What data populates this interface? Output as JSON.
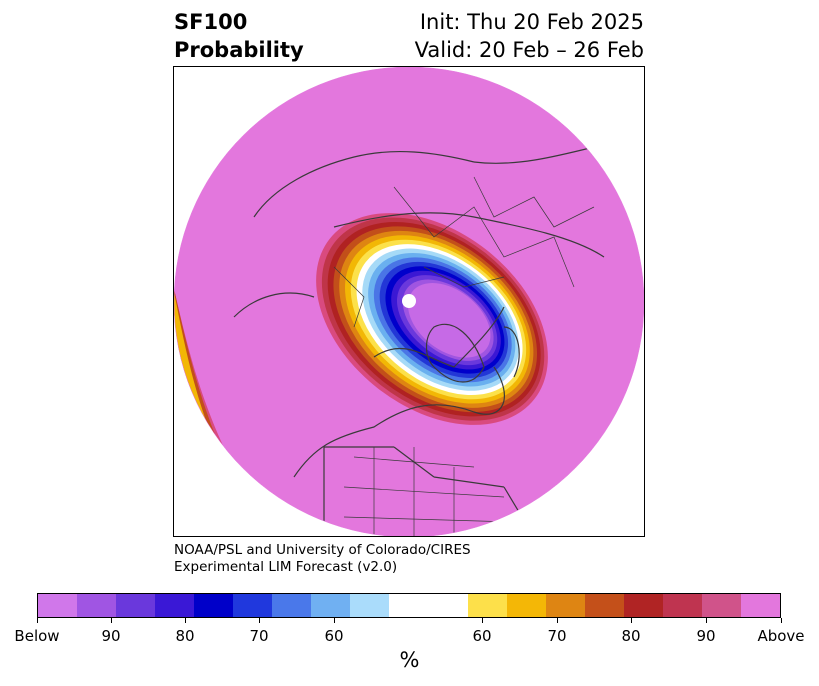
{
  "title": {
    "line1": "SF100",
    "line2": "Probability",
    "init": "Init: Thu 20 Feb 2025",
    "valid": "Valid: 20 Feb – 26 Feb"
  },
  "credit": {
    "line1": "NOAA/PSL and University of Colorado/CIRES",
    "line2": "Experimental LIM Forecast (v2.0)"
  },
  "map": {
    "projection": "North polar stereographic",
    "background_color": "#e377dd",
    "coastline_color": "#3a3a3a",
    "pole_marker_color": "#ffffff",
    "anomaly_center": "Canadian Arctic Archipelago / Baffin Bay",
    "ring_colors": [
      "#d94a7f",
      "#bf3548",
      "#b02222",
      "#c24f1a",
      "#de8512",
      "#f2b705",
      "#fce14a",
      "#ffffff",
      "#a6daf7",
      "#6ab0ef",
      "#4a75e6",
      "#2337d6",
      "#0000cb",
      "#3b18d4",
      "#6a38dc",
      "#9f55e1",
      "#c66ae6"
    ]
  },
  "colorbar": {
    "segments": [
      "#d077ea",
      "#a055e3",
      "#6a38dc",
      "#3a18d6",
      "#0000c9",
      "#2038dd",
      "#4a78ea",
      "#70b0f2",
      "#aadcfb",
      "#ffffff",
      "#ffffff",
      "#fde04a",
      "#f4b706",
      "#de8513",
      "#c4501a",
      "#b02424",
      "#bf3450",
      "#d0538a",
      "#e377dd"
    ],
    "tick_labels": [
      "Below",
      "90",
      "80",
      "70",
      "60",
      "60",
      "70",
      "80",
      "90",
      "Above"
    ],
    "unit": "%"
  }
}
